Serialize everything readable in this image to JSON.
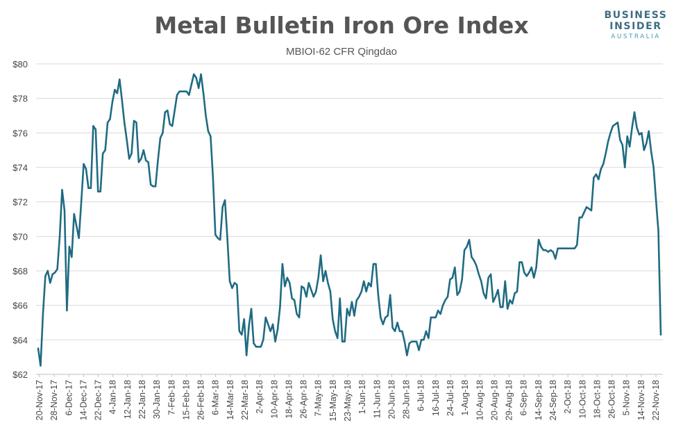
{
  "colors": {
    "line": "#1f6b82",
    "title": "#555555",
    "logo_dark": "#3d6e84",
    "logo_light": "#4a9bb7"
  },
  "logo": {
    "line1": "BUSINESS",
    "line2": "INSIDER",
    "line3": "AUSTRALIA"
  },
  "chart_data": {
    "type": "line",
    "title": "Metal Bulletin Iron Ore Index",
    "subtitle": "MBIOI-62 CFR Qingdao",
    "xlabel": "",
    "ylabel": "",
    "ylim": [
      62,
      80
    ],
    "yticks": [
      62,
      64,
      66,
      68,
      70,
      72,
      74,
      76,
      78,
      80
    ],
    "ytick_labels": [
      "$62",
      "$64",
      "$66",
      "$68",
      "$70",
      "$72",
      "$74",
      "$76",
      "$78",
      "$80"
    ],
    "grid": true,
    "legend": "none",
    "x_tick_labels": [
      "20-Nov-17",
      "28-Nov-17",
      "6-Dec-17",
      "14-Dec-17",
      "22-Dec-17",
      "4-Jan-18",
      "12-Jan-18",
      "22-Jan-18",
      "30-Jan-18",
      "7-Feb-18",
      "15-Feb-18",
      "26-Feb-18",
      "6-Mar-18",
      "14-Mar-18",
      "22-Mar-18",
      "2-Apr-18",
      "10-Apr-18",
      "18-Apr-18",
      "26-Apr-18",
      "7-May-18",
      "15-May-18",
      "23-May-18",
      "1-Jun-18",
      "11-Jun-18",
      "20-Jun-18",
      "28-Jun-18",
      "6-Jul-18",
      "16-Jul-18",
      "24-Jul-18",
      "1-Aug-18",
      "10-Aug-18",
      "20-Aug-18",
      "29-Aug-18",
      "6-Sep-18",
      "14-Sep-18",
      "24-Sep-18",
      "2-Oct-18",
      "10-Oct-18",
      "18-Oct-18",
      "26-Oct-18",
      "5-Nov-18",
      "14-Nov-18",
      "22-Nov-18"
    ],
    "series": [
      {
        "values": [
          63.5,
          62.5,
          65.5,
          67.7,
          68.0,
          67.3,
          67.8,
          67.9,
          68.1,
          70.0,
          72.7,
          71.5,
          65.7,
          69.4,
          68.8,
          71.3,
          70.6,
          69.9,
          72.0,
          74.2,
          73.9,
          72.8,
          72.8,
          76.4,
          76.2,
          72.6,
          72.6,
          74.8,
          75.0,
          76.6,
          76.8,
          77.8,
          78.5,
          78.3,
          79.1,
          77.9,
          76.6,
          75.6,
          74.5,
          74.8,
          76.7,
          76.6,
          74.3,
          74.5,
          75.0,
          74.4,
          74.3,
          73.0,
          72.9,
          72.9,
          74.4,
          75.7,
          76.0,
          77.2,
          77.3,
          76.5,
          76.4,
          77.3,
          78.2,
          78.4,
          78.4,
          78.4,
          78.4,
          78.2,
          78.8,
          79.4,
          79.2,
          78.6,
          79.4,
          78.3,
          77.0,
          76.1,
          75.8,
          73.4,
          70.1,
          69.9,
          69.8,
          71.7,
          72.1,
          69.9,
          67.4,
          67.0,
          67.3,
          67.2,
          64.5,
          64.3,
          65.2,
          63.1,
          64.8,
          65.8,
          63.8,
          63.6,
          63.6,
          63.6,
          64.0,
          65.3,
          64.9,
          64.5,
          64.9,
          63.9,
          64.6,
          65.9,
          68.4,
          67.1,
          67.6,
          67.3,
          66.4,
          66.3,
          65.5,
          65.3,
          67.1,
          67.0,
          66.5,
          67.3,
          66.9,
          66.5,
          66.8,
          67.6,
          68.9,
          67.4,
          68.0,
          67.3,
          66.8,
          65.2,
          64.5,
          64.1,
          66.4,
          63.9,
          63.9,
          65.8,
          65.4,
          66.2,
          65.4,
          66.3,
          66.5,
          66.8,
          67.4,
          66.8,
          67.3,
          67.1,
          68.4,
          68.4,
          66.6,
          65.3,
          64.9,
          65.3,
          65.4,
          66.6,
          64.7,
          64.5,
          65.0,
          64.5,
          64.5,
          63.9,
          63.1,
          63.8,
          63.9,
          63.9,
          63.9,
          63.4,
          64.0,
          64.0,
          64.5,
          64.1,
          65.3,
          65.3,
          65.3,
          65.7,
          65.5,
          66.0,
          66.3,
          66.5,
          67.5,
          67.6,
          68.2,
          66.6,
          66.8,
          67.5,
          69.2,
          69.4,
          69.8,
          68.8,
          68.6,
          68.3,
          67.8,
          67.4,
          66.7,
          66.4,
          67.6,
          67.8,
          66.2,
          66.5,
          66.9,
          65.9,
          65.9,
          67.4,
          65.8,
          66.3,
          66.1,
          66.7,
          66.8,
          68.5,
          68.5,
          67.9,
          67.7,
          67.9,
          68.2,
          67.6,
          68.2,
          69.8,
          69.4,
          69.2,
          69.2,
          69.1,
          69.2,
          69.1,
          68.7,
          69.3,
          69.3,
          69.3,
          69.3,
          69.3,
          69.3,
          69.3,
          69.3,
          69.5,
          71.1,
          71.1,
          71.4,
          71.7,
          71.6,
          71.5,
          73.4,
          73.6,
          73.3,
          73.9,
          74.2,
          74.8,
          75.5,
          76.0,
          76.4,
          76.5,
          76.6,
          75.6,
          75.3,
          74.0,
          75.8,
          75.2,
          76.3,
          77.2,
          76.3,
          75.9,
          76.0,
          75.0,
          75.4,
          76.1,
          74.9,
          74.0,
          72.1,
          70.3,
          64.3
        ]
      }
    ]
  }
}
